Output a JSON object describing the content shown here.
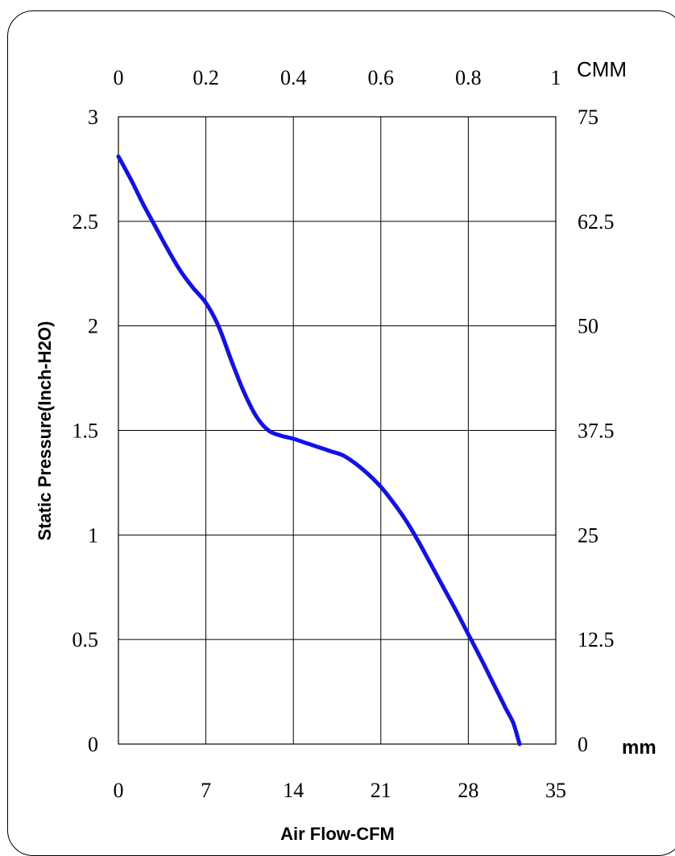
{
  "chart_data": {
    "type": "line",
    "title": "",
    "xlabel": "Air Flow-CFM",
    "ylabel": "Static Pressure(Inch-H2O)",
    "top_axis_unit": "CMM",
    "right_axis_unit": "mm",
    "xlim": [
      0,
      35
    ],
    "ylim": [
      0,
      3
    ],
    "top_xlim": [
      0,
      1
    ],
    "right_ylim": [
      0,
      75
    ],
    "x_ticks": [
      "0",
      "7",
      "14",
      "21",
      "28",
      "35"
    ],
    "y_ticks": [
      "0",
      "0.5",
      "1",
      "1.5",
      "2",
      "2.5",
      "3"
    ],
    "top_ticks": [
      "0",
      "0.2",
      "0.4",
      "0.6",
      "0.8",
      "1"
    ],
    "right_ticks": [
      "0",
      "12.5",
      "25",
      "37.5",
      "50",
      "62.5",
      "75"
    ],
    "grid": true,
    "series": [
      {
        "color": "#1010f0",
        "points": [
          [
            0,
            2.81
          ],
          [
            1,
            2.7
          ],
          [
            2,
            2.58
          ],
          [
            3,
            2.47
          ],
          [
            4,
            2.36
          ],
          [
            5,
            2.26
          ],
          [
            6,
            2.18
          ],
          [
            7,
            2.11
          ],
          [
            8,
            2.0
          ],
          [
            9,
            1.84
          ],
          [
            10,
            1.69
          ],
          [
            11,
            1.57
          ],
          [
            12,
            1.5
          ],
          [
            13,
            1.475
          ],
          [
            14,
            1.46
          ],
          [
            15,
            1.44
          ],
          [
            16,
            1.42
          ],
          [
            17,
            1.4
          ],
          [
            18,
            1.38
          ],
          [
            19,
            1.34
          ],
          [
            20,
            1.29
          ],
          [
            21,
            1.23
          ],
          [
            22,
            1.155
          ],
          [
            23,
            1.07
          ],
          [
            24,
            0.97
          ],
          [
            25,
            0.86
          ],
          [
            26,
            0.75
          ],
          [
            27,
            0.64
          ],
          [
            28,
            0.525
          ],
          [
            29,
            0.41
          ],
          [
            30,
            0.29
          ],
          [
            31,
            0.17
          ],
          [
            31.6,
            0.1
          ],
          [
            32.1,
            0.0
          ]
        ]
      }
    ]
  }
}
